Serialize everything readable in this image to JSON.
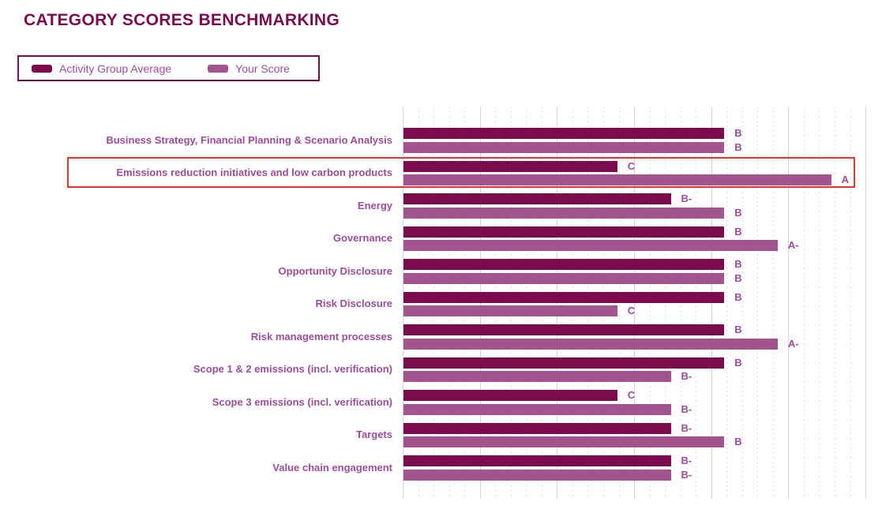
{
  "title": "CATEGORY SCORES BENCHMARKING",
  "legend": {
    "items": [
      {
        "label": "Activity Group Average",
        "color": "#7C0B4D"
      },
      {
        "label": "Your Score",
        "color": "#A3548F"
      }
    ]
  },
  "chart_data": {
    "type": "bar",
    "orientation": "horizontal",
    "title": "CATEGORY SCORES BENCHMARKING",
    "grade_scale": [
      "D-",
      "D",
      "C-",
      "C",
      "B-",
      "B",
      "A-",
      "A"
    ],
    "categories": [
      "Business Strategy, Financial Planning & Scenario Analysis",
      "Emissions reduction initiatives and low carbon products",
      "Energy",
      "Governance",
      "Opportunity Disclosure",
      "Risk Disclosure",
      "Risk management processes",
      "Scope 1 & 2 emissions (incl. verification)",
      "Scope 3 emissions (incl. verification)",
      "Targets",
      "Value chain engagement"
    ],
    "series": [
      {
        "name": "Activity Group Average",
        "color": "#7C0B4D",
        "grades": [
          "B",
          "C",
          "B-",
          "B",
          "B",
          "B",
          "B",
          "B",
          "C",
          "B-",
          "B-"
        ]
      },
      {
        "name": "Your Score",
        "color": "#A3548F",
        "grades": [
          "B",
          "A",
          "B",
          "A-",
          "B",
          "C",
          "A-",
          "B-",
          "B-",
          "B",
          "B-"
        ]
      }
    ],
    "highlight": {
      "category": "Emissions reduction initiatives and low carbon products",
      "index": 1,
      "color": "#E9322B"
    },
    "legend_position": "top-left",
    "grid": "vertical dotted minors with solid majors",
    "value_labels": "letter grade at end of each bar"
  },
  "colors": {
    "bar_dark": "#7C0B4D",
    "bar_light": "#A3548F",
    "label_text": "#9D4B9B",
    "title_text": "#7A0C4E",
    "grid_major": "#D4D4D4",
    "grid_minor": "#DCDCDC",
    "highlight_red": "#E9322B"
  }
}
